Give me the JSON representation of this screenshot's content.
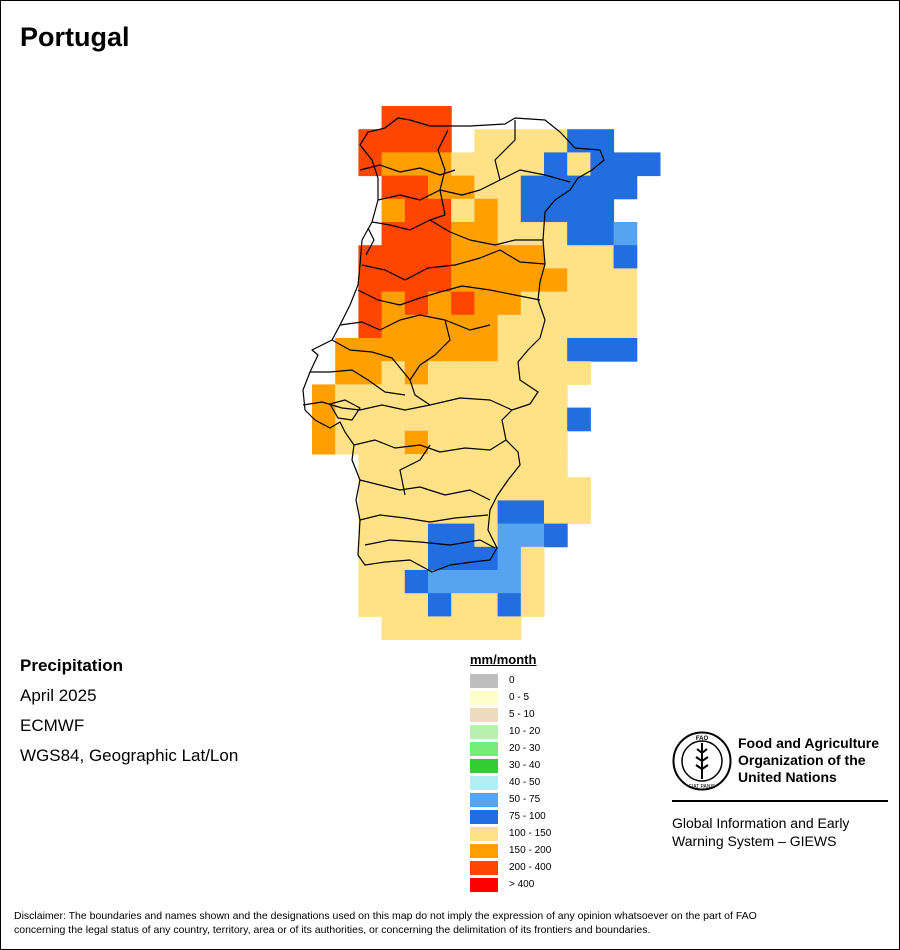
{
  "map": {
    "title": "Portugal"
  },
  "info": {
    "variable": "Precipitation",
    "period": "April 2025",
    "source": "ECMWF",
    "projection": "WGS84, Geographic Lat/Lon"
  },
  "legend": {
    "unit": "mm/month",
    "classes": [
      {
        "label": "0",
        "color": "#bebebe"
      },
      {
        "label": "0 - 5",
        "color": "#ffffcc"
      },
      {
        "label": "5 - 10",
        "color": "#ecdcbd"
      },
      {
        "label": "10 - 20",
        "color": "#b8f0b0"
      },
      {
        "label": "20 - 30",
        "color": "#78ec78"
      },
      {
        "label": "30 - 40",
        "color": "#32cd32"
      },
      {
        "label": "40 - 50",
        "color": "#b4ecf4"
      },
      {
        "label": "50 - 75",
        "color": "#56a4f0"
      },
      {
        "label": "75 - 100",
        "color": "#226ee0"
      },
      {
        "label": "100 - 150",
        "color": "#ffe188"
      },
      {
        "label": "150 - 200",
        "color": "#ffa000"
      },
      {
        "label": "200 - 400",
        "color": "#ff4600"
      },
      {
        "label": "> 400",
        "color": "#ff0000"
      }
    ]
  },
  "organization": {
    "name_line1": "Food and Agriculture",
    "name_line2": "Organization of the",
    "name_line3": "United Nations",
    "system_line1": "Global Information and Early",
    "system_line2": "Warning System – GIEWS",
    "logo_text": "FAO",
    "logo_motto": "FIAT PANIS"
  },
  "disclaimer": {
    "line1": "Disclaimer: The boundaries and names shown and the designations used on this map do not imply the expression of any opinion whatsoever on the part of FAO",
    "line2": "concerning the legal status of any country, territory, area or of its authorities, or concerning the delimitation of its frontiers and boundaries."
  }
}
